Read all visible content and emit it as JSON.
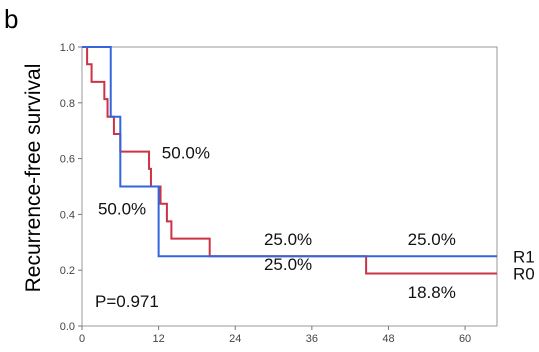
{
  "panel_label": "b",
  "chart_data": {
    "type": "line",
    "subtype": "kaplan-meier-step",
    "title": "",
    "xlabel": "",
    "ylabel": "Recurrence-free  survival",
    "xlim": [
      0,
      65
    ],
    "ylim": [
      0,
      1.0
    ],
    "xticks": [
      0,
      12,
      24,
      36,
      48,
      60
    ],
    "yticks": [
      0.0,
      0.2,
      0.4,
      0.6,
      0.8,
      1.0
    ],
    "xtick_labels": [
      "0",
      "12",
      "24",
      "36",
      "48",
      "60"
    ],
    "ytick_labels": [
      "0.0",
      "0.2",
      "0.4",
      "0.6",
      "0.8",
      "1.0"
    ],
    "grid": false,
    "series": [
      {
        "name": "R0",
        "color": "#cc3344",
        "steps": [
          {
            "x": 0,
            "y": 1.0
          },
          {
            "x": 0.8,
            "y": 0.938
          },
          {
            "x": 1.5,
            "y": 0.875
          },
          {
            "x": 3.5,
            "y": 0.813
          },
          {
            "x": 4.0,
            "y": 0.75
          },
          {
            "x": 5.0,
            "y": 0.688
          },
          {
            "x": 6.0,
            "y": 0.625
          },
          {
            "x": 10.5,
            "y": 0.563
          },
          {
            "x": 10.8,
            "y": 0.5
          },
          {
            "x": 12.3,
            "y": 0.438
          },
          {
            "x": 13.3,
            "y": 0.375
          },
          {
            "x": 14.0,
            "y": 0.313
          },
          {
            "x": 20.0,
            "y": 0.25
          },
          {
            "x": 44.5,
            "y": 0.188
          }
        ],
        "end_x": 65
      },
      {
        "name": "R1",
        "color": "#3366dd",
        "steps": [
          {
            "x": 0,
            "y": 1.0
          },
          {
            "x": 4.5,
            "y": 0.75
          },
          {
            "x": 6.0,
            "y": 0.5
          },
          {
            "x": 12.0,
            "y": 0.25
          }
        ],
        "end_x": 65
      }
    ],
    "annotations": [
      {
        "text": "50.0%",
        "x": 12.5,
        "y": 0.6
      },
      {
        "text": "50.0%",
        "x": 2.5,
        "y": 0.4
      },
      {
        "text": "25.0%",
        "x": 28.5,
        "y": 0.29
      },
      {
        "text": "25.0%",
        "x": 28.5,
        "y": 0.2
      },
      {
        "text": "25.0%",
        "x": 51.0,
        "y": 0.29
      },
      {
        "text": "18.8%",
        "x": 51.0,
        "y": 0.1
      }
    ],
    "p_value": "P=0.971"
  }
}
